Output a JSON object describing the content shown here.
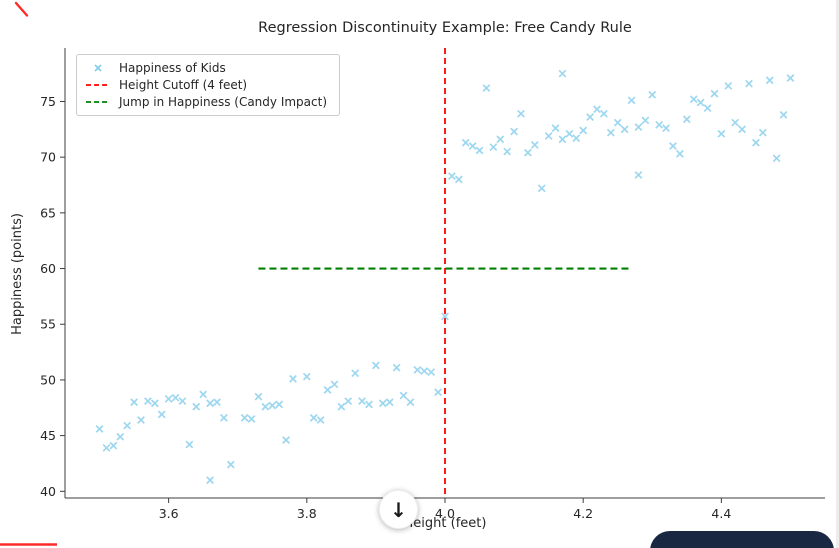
{
  "chart_data": {
    "type": "scatter",
    "title": "Regression Discontinuity Example: Free Candy Rule",
    "xlabel": "Height (feet)",
    "ylabel": "Happiness (points)",
    "xlim": [
      3.45,
      4.55
    ],
    "ylim": [
      39.4,
      79.8
    ],
    "xticks": [
      3.6,
      3.8,
      4.0,
      4.2,
      4.4
    ],
    "yticks": [
      40,
      45,
      50,
      55,
      60,
      65,
      70,
      75
    ],
    "grid": false,
    "legend": {
      "position": "upper left",
      "entries": [
        {
          "label": "Happiness of Kids",
          "type": "marker-x",
          "color": "#87ceeb"
        },
        {
          "label": "Height Cutoff (4 feet)",
          "type": "dashed-line",
          "color": "#ff0000"
        },
        {
          "label": "Jump in Happiness (Candy Impact)",
          "type": "dashed-line",
          "color": "#008000"
        }
      ]
    },
    "series": [
      {
        "name": "Happiness of Kids",
        "marker": "x",
        "color": "#87ceeb",
        "points": [
          [
            3.5,
            45.6
          ],
          [
            3.51,
            43.9
          ],
          [
            3.52,
            44.1
          ],
          [
            3.53,
            44.9
          ],
          [
            3.54,
            45.9
          ],
          [
            3.55,
            48.0
          ],
          [
            3.56,
            46.4
          ],
          [
            3.57,
            48.1
          ],
          [
            3.58,
            47.9
          ],
          [
            3.59,
            46.9
          ],
          [
            3.6,
            48.3
          ],
          [
            3.61,
            48.4
          ],
          [
            3.62,
            48.1
          ],
          [
            3.63,
            44.2
          ],
          [
            3.64,
            47.6
          ],
          [
            3.65,
            48.7
          ],
          [
            3.66,
            47.9
          ],
          [
            3.66,
            41.0
          ],
          [
            3.67,
            48.0
          ],
          [
            3.68,
            46.6
          ],
          [
            3.69,
            42.4
          ],
          [
            3.71,
            46.6
          ],
          [
            3.72,
            46.5
          ],
          [
            3.73,
            48.5
          ],
          [
            3.74,
            47.6
          ],
          [
            3.75,
            47.7
          ],
          [
            3.76,
            47.8
          ],
          [
            3.77,
            44.6
          ],
          [
            3.78,
            50.1
          ],
          [
            3.8,
            50.3
          ],
          [
            3.81,
            46.6
          ],
          [
            3.82,
            46.4
          ],
          [
            3.83,
            49.1
          ],
          [
            3.84,
            49.6
          ],
          [
            3.85,
            47.6
          ],
          [
            3.86,
            48.1
          ],
          [
            3.87,
            50.6
          ],
          [
            3.88,
            48.1
          ],
          [
            3.89,
            47.8
          ],
          [
            3.9,
            51.3
          ],
          [
            3.91,
            47.9
          ],
          [
            3.92,
            48.0
          ],
          [
            3.93,
            51.1
          ],
          [
            3.94,
            48.6
          ],
          [
            3.95,
            48.0
          ],
          [
            3.96,
            50.9
          ],
          [
            3.97,
            50.8
          ],
          [
            3.98,
            50.7
          ],
          [
            3.99,
            48.9
          ],
          [
            4.0,
            55.7
          ],
          [
            4.01,
            68.3
          ],
          [
            4.02,
            68.0
          ],
          [
            4.03,
            71.3
          ],
          [
            4.04,
            71.0
          ],
          [
            4.05,
            70.6
          ],
          [
            4.06,
            76.2
          ],
          [
            4.07,
            70.9
          ],
          [
            4.08,
            71.6
          ],
          [
            4.09,
            70.5
          ],
          [
            4.1,
            72.3
          ],
          [
            4.11,
            73.9
          ],
          [
            4.12,
            70.4
          ],
          [
            4.13,
            71.1
          ],
          [
            4.14,
            67.2
          ],
          [
            4.15,
            71.9
          ],
          [
            4.16,
            72.6
          ],
          [
            4.17,
            77.5
          ],
          [
            4.17,
            71.6
          ],
          [
            4.18,
            72.1
          ],
          [
            4.19,
            71.7
          ],
          [
            4.2,
            72.4
          ],
          [
            4.21,
            73.6
          ],
          [
            4.22,
            74.3
          ],
          [
            4.23,
            73.9
          ],
          [
            4.24,
            72.2
          ],
          [
            4.25,
            73.1
          ],
          [
            4.26,
            72.5
          ],
          [
            4.27,
            75.1
          ],
          [
            4.28,
            72.7
          ],
          [
            4.28,
            68.4
          ],
          [
            4.29,
            73.3
          ],
          [
            4.3,
            75.6
          ],
          [
            4.31,
            72.9
          ],
          [
            4.32,
            72.6
          ],
          [
            4.33,
            71.0
          ],
          [
            4.34,
            70.3
          ],
          [
            4.35,
            73.4
          ],
          [
            4.36,
            75.2
          ],
          [
            4.37,
            74.9
          ],
          [
            4.38,
            74.4
          ],
          [
            4.39,
            75.7
          ],
          [
            4.4,
            72.1
          ],
          [
            4.41,
            76.4
          ],
          [
            4.42,
            73.1
          ],
          [
            4.43,
            72.5
          ],
          [
            4.44,
            76.6
          ],
          [
            4.45,
            71.3
          ],
          [
            4.46,
            72.2
          ],
          [
            4.47,
            76.9
          ],
          [
            4.48,
            69.9
          ],
          [
            4.49,
            73.8
          ],
          [
            4.5,
            77.1
          ]
        ]
      }
    ],
    "lines": [
      {
        "name": "Height Cutoff (4 feet)",
        "type": "vline",
        "x": 4.0,
        "color": "#ff0000",
        "style": "dashed"
      },
      {
        "name": "Jump in Happiness (Candy Impact)",
        "type": "hline",
        "y": 60,
        "x_start": 3.73,
        "x_end": 4.27,
        "color": "#008000",
        "style": "dashed"
      }
    ]
  },
  "ui": {
    "scroll_down_button": {
      "glyph": "↓"
    },
    "bottom_right_widget": {
      "color": "#1a2742"
    },
    "annotations": {
      "color": "#ff2b2b"
    },
    "scrollbar_color": "#ededed"
  }
}
